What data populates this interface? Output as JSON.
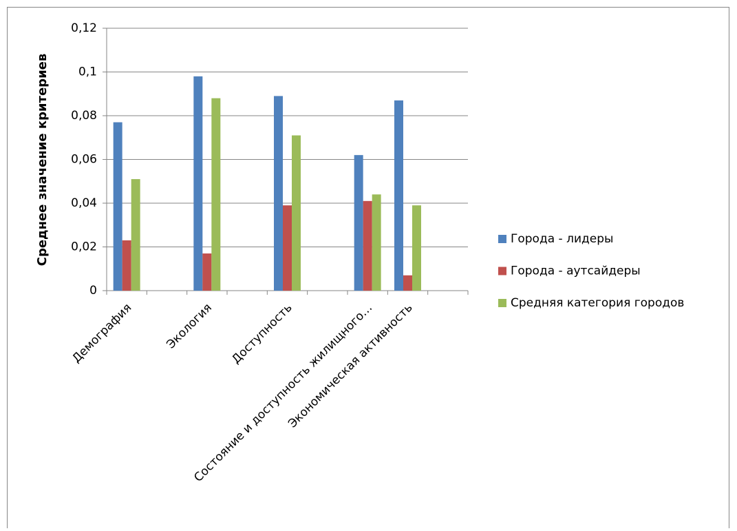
{
  "chart_data": {
    "type": "bar",
    "y_label": "Среднее значение критериев",
    "categories": [
      "Демография",
      null,
      "Экология",
      null,
      "Доступность",
      null,
      "Состояние и доступность жилищного…",
      "Экономическая активность",
      null
    ],
    "series": [
      {
        "name": "Города - лидеры",
        "color": "#4f81bd",
        "values": [
          0.077,
          null,
          0.098,
          null,
          0.089,
          null,
          0.062,
          0.087,
          null
        ]
      },
      {
        "name": "Города - аутсайдеры",
        "color": "#c0504d",
        "values": [
          0.023,
          null,
          0.017,
          null,
          0.039,
          null,
          0.041,
          0.007,
          null
        ]
      },
      {
        "name": "Средняя категория городов",
        "color": "#9bbb59",
        "values": [
          0.051,
          null,
          0.088,
          null,
          0.071,
          null,
          0.044,
          0.039,
          null
        ]
      }
    ],
    "ylim": [
      0,
      0.12
    ],
    "yticks": [
      0,
      {
        "value": 0.02,
        "label": "0,02"
      },
      {
        "value": 0.04,
        "label": "0,04"
      },
      {
        "value": 0.06,
        "label": "0,06"
      },
      {
        "value": 0.08,
        "label": "0,08"
      },
      {
        "value": 0.1,
        "label": "0,1"
      },
      {
        "value": 0.12,
        "label": "0,12"
      }
    ],
    "grid": true,
    "legend": "right"
  }
}
